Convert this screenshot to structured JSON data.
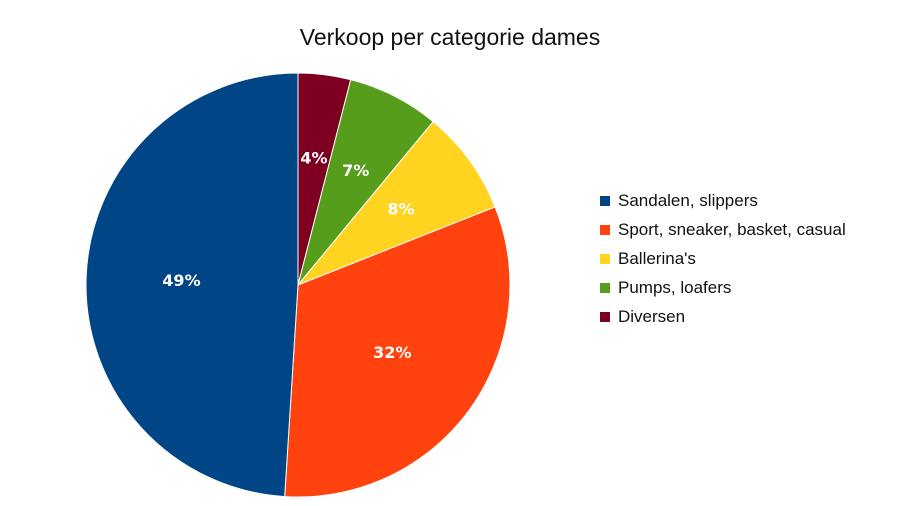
{
  "chart_data": {
    "type": "pie",
    "title": "Verkoop per categorie dames",
    "categories": [
      "Sandalen, slippers",
      "Sport, sneaker, basket, casual",
      "Ballerina's",
      "Pumps, loafers",
      "Diversen"
    ],
    "values": [
      49,
      32,
      8,
      7,
      4
    ],
    "labels": [
      "49%",
      "32%",
      "8%",
      "7%",
      "4%"
    ],
    "colors": [
      "#004586",
      "#ff420e",
      "#ffd320",
      "#579d1c",
      "#7e0021"
    ],
    "legend_position": "right"
  }
}
